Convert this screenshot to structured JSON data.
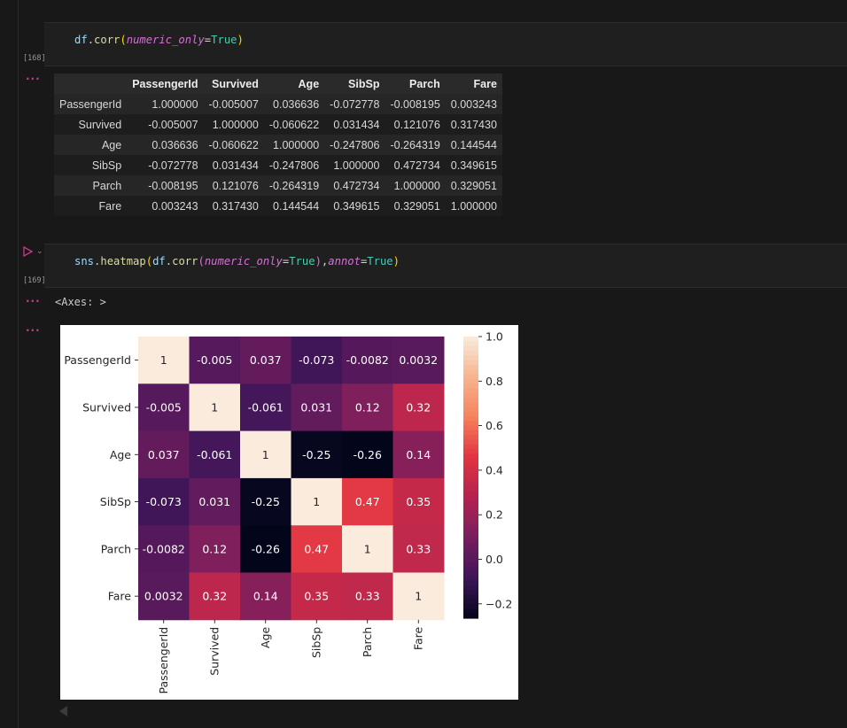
{
  "cells": [
    {
      "exec_count": "[168]",
      "code": "df.corr(numeric_only=True)",
      "output_dots": "···",
      "table": {
        "columns": [
          "PassengerId",
          "Survived",
          "Age",
          "SibSp",
          "Parch",
          "Fare"
        ],
        "rows": [
          {
            "label": "PassengerId",
            "values": [
              "1.000000",
              "-0.005007",
              "0.036636",
              "-0.072778",
              "-0.008195",
              "0.003243"
            ]
          },
          {
            "label": "Survived",
            "values": [
              "-0.005007",
              "1.000000",
              "-0.060622",
              "0.031434",
              "0.121076",
              "0.317430"
            ]
          },
          {
            "label": "Age",
            "values": [
              "0.036636",
              "-0.060622",
              "1.000000",
              "-0.247806",
              "-0.264319",
              "0.144544"
            ]
          },
          {
            "label": "SibSp",
            "values": [
              "-0.072778",
              "0.031434",
              "-0.247806",
              "1.000000",
              "0.472734",
              "0.349615"
            ]
          },
          {
            "label": "Parch",
            "values": [
              "-0.008195",
              "0.121076",
              "-0.264319",
              "0.472734",
              "1.000000",
              "0.329051"
            ]
          },
          {
            "label": "Fare",
            "values": [
              "0.003243",
              "0.317430",
              "0.144544",
              "0.349615",
              "0.329051",
              "1.000000"
            ]
          }
        ]
      }
    },
    {
      "exec_count": "[169]",
      "code": "sns.heatmap(df.corr(numeric_only=True),annot=True)",
      "output_dots": "···",
      "output_text": "<Axes: >",
      "image_dots": "···"
    }
  ],
  "icons": {
    "run": "play-icon",
    "run_menu": "chevron-down-icon",
    "scroll_left": "caret-left-icon"
  },
  "chart_data": {
    "type": "heatmap",
    "x_labels": [
      "PassengerId",
      "Survived",
      "Age",
      "SibSp",
      "Parch",
      "Fare"
    ],
    "y_labels": [
      "PassengerId",
      "Survived",
      "Age",
      "SibSp",
      "Parch",
      "Fare"
    ],
    "values": [
      [
        1.0,
        -0.005007,
        0.036636,
        -0.072778,
        -0.008195,
        0.003243
      ],
      [
        -0.005007,
        1.0,
        -0.060622,
        0.031434,
        0.121076,
        0.31743
      ],
      [
        0.036636,
        -0.060622,
        1.0,
        -0.247806,
        -0.264319,
        0.144544
      ],
      [
        -0.072778,
        0.031434,
        -0.247806,
        1.0,
        0.472734,
        0.349615
      ],
      [
        -0.008195,
        0.121076,
        -0.264319,
        0.472734,
        1.0,
        0.329051
      ],
      [
        0.003243,
        0.31743,
        0.144544,
        0.349615,
        0.329051,
        1.0
      ]
    ],
    "annotations": [
      [
        "1",
        "-0.005",
        "0.037",
        "-0.073",
        "-0.0082",
        "0.0032"
      ],
      [
        "-0.005",
        "1",
        "-0.061",
        "0.031",
        "0.12",
        "0.32"
      ],
      [
        "0.037",
        "-0.061",
        "1",
        "-0.25",
        "-0.26",
        "0.14"
      ],
      [
        "-0.073",
        "0.031",
        "-0.25",
        "1",
        "0.47",
        "0.35"
      ],
      [
        "-0.0082",
        "0.12",
        "-0.26",
        "0.47",
        "1",
        "0.33"
      ],
      [
        "0.0032",
        "0.32",
        "0.14",
        "0.35",
        "0.33",
        "1"
      ]
    ],
    "colorbar": {
      "ticks": [
        1.0,
        0.8,
        0.6,
        0.4,
        0.2,
        0.0,
        -0.2
      ],
      "tick_labels": [
        "1.0",
        "0.8",
        "0.6",
        "0.4",
        "0.2",
        "0.0",
        "−0.2"
      ],
      "range": [
        -0.264319,
        1.0
      ]
    },
    "colormap": [
      "#03051a",
      "#3d1659",
      "#771e5e",
      "#b32350",
      "#e13342",
      "#f6825b",
      "#f6b48e",
      "#faebdd"
    ]
  }
}
